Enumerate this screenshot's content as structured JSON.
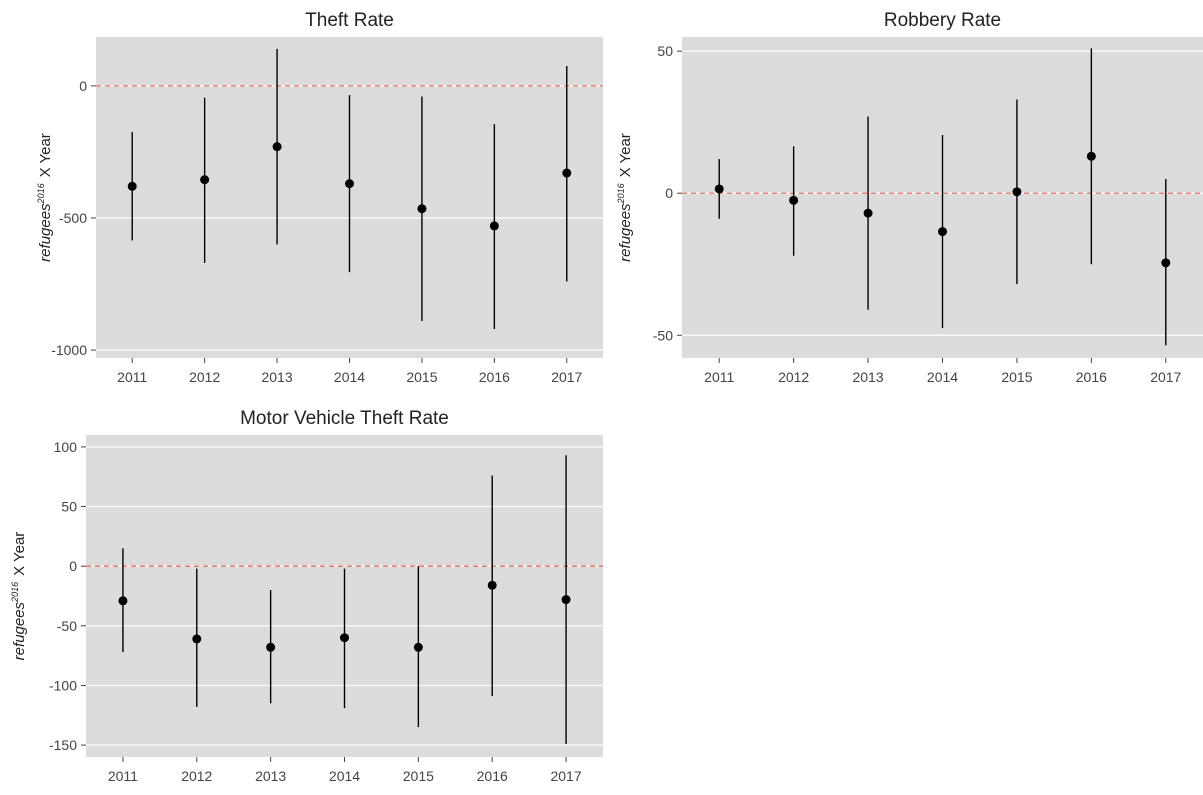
{
  "chart_data": [
    {
      "type": "scatter",
      "title": "Theft Rate",
      "ylabel_main": "refugees",
      "ylabel_sup": "2016",
      "ylabel_rest": "X Year",
      "categories": [
        "2011",
        "2012",
        "2013",
        "2014",
        "2015",
        "2016",
        "2017"
      ],
      "estimates": [
        -380,
        -355,
        -230,
        -370,
        -465,
        -530,
        -330
      ],
      "ci_low": [
        -585,
        -670,
        -600,
        -705,
        -890,
        -920,
        -740
      ],
      "ci_high": [
        -175,
        -45,
        140,
        -35,
        -40,
        -145,
        75
      ],
      "ylim": [
        -1030,
        185
      ],
      "yticks": [
        0,
        -500,
        -1000
      ],
      "ytick_labels": [
        "0",
        "-500",
        "-1000"
      ],
      "reference_line": 0
    },
    {
      "type": "scatter",
      "title": "Robbery Rate",
      "ylabel_main": "refugees",
      "ylabel_sup": "2016",
      "ylabel_rest": "X Year",
      "categories": [
        "2011",
        "2012",
        "2013",
        "2014",
        "2015",
        "2016",
        "2017"
      ],
      "estimates": [
        1.5,
        -2.5,
        -7.0,
        -13.5,
        0.5,
        13.0,
        -24.5
      ],
      "ci_low": [
        -9.0,
        -22.0,
        -41.0,
        -47.5,
        -32.0,
        -25.0,
        -53.5
      ],
      "ci_high": [
        12.0,
        16.5,
        27.0,
        20.5,
        33.0,
        51.0,
        5.0
      ],
      "ylim": [
        -58,
        55
      ],
      "yticks": [
        50,
        0,
        -50
      ],
      "ytick_labels": [
        "50",
        "0",
        "-50"
      ],
      "reference_line": 0
    },
    {
      "type": "scatter",
      "title": "Motor Vehicle Theft Rate",
      "ylabel_main": "refugees",
      "ylabel_sup": "2016",
      "ylabel_rest": "X Year",
      "categories": [
        "2011",
        "2012",
        "2013",
        "2014",
        "2015",
        "2016",
        "2017"
      ],
      "estimates": [
        -29,
        -61,
        -68,
        -60,
        -68,
        -16,
        -28
      ],
      "ci_low": [
        -72,
        -118,
        -115,
        -119,
        -135,
        -109,
        -149
      ],
      "ci_high": [
        15,
        -2,
        -20,
        -2,
        0,
        76,
        93
      ],
      "ylim": [
        -160,
        110
      ],
      "yticks": [
        100,
        50,
        0,
        -50,
        -100,
        -150
      ],
      "ytick_labels": [
        "100",
        "50",
        "0",
        "-50",
        "-100",
        "-150"
      ],
      "reference_line": 0
    }
  ],
  "colors": {
    "panel_background": "#dcdcdc",
    "grid": "#ffffff",
    "reference_line": "#ef6f62",
    "marks": "#000000",
    "text": "#222222",
    "tick_text": "#444444"
  }
}
